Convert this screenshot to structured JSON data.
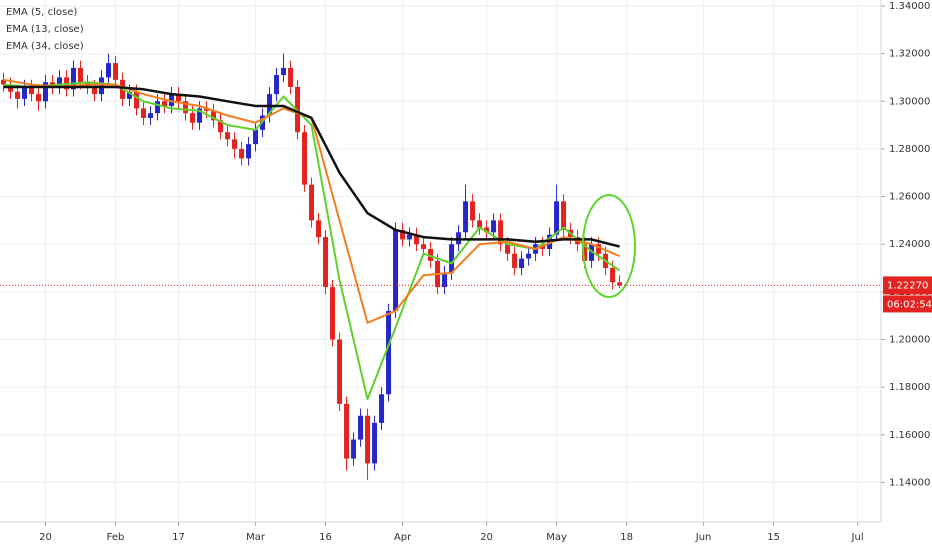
{
  "chart_data": {
    "type": "candlestick",
    "up_color": "#2727c9",
    "down_color": "#e3231f",
    "grid": true,
    "x": [
      0,
      1,
      2,
      3,
      4,
      5,
      6,
      7,
      8,
      9,
      10,
      11,
      12,
      13,
      14,
      15,
      16,
      17,
      18,
      19,
      20,
      21,
      22,
      23,
      24,
      25,
      26,
      27,
      28,
      29,
      30,
      31,
      32,
      33,
      34,
      35,
      36,
      37,
      38,
      39,
      40,
      41,
      42,
      43,
      44,
      45,
      46,
      47,
      48,
      49,
      50,
      51,
      52,
      53,
      54,
      55,
      56,
      57,
      58,
      59,
      60,
      61,
      62,
      63,
      64,
      65,
      66,
      67,
      68,
      69,
      70,
      71,
      72,
      73,
      74,
      75,
      76,
      77,
      78,
      79,
      80,
      81,
      82,
      83,
      84,
      85,
      86,
      87,
      88
    ],
    "ohlc": [
      [
        1.309,
        1.312,
        1.304,
        1.307
      ],
      [
        1.307,
        1.31,
        1.301,
        1.304
      ],
      [
        1.304,
        1.307,
        1.297,
        1.301
      ],
      [
        1.301,
        1.309,
        1.298,
        1.306
      ],
      [
        1.306,
        1.309,
        1.3,
        1.303
      ],
      [
        1.303,
        1.306,
        1.296,
        1.3
      ],
      [
        1.3,
        1.311,
        1.297,
        1.308
      ],
      [
        1.308,
        1.311,
        1.303,
        1.306
      ],
      [
        1.306,
        1.313,
        1.303,
        1.31
      ],
      [
        1.31,
        1.313,
        1.302,
        1.305
      ],
      [
        1.305,
        1.317,
        1.302,
        1.314
      ],
      [
        1.314,
        1.317,
        1.305,
        1.308
      ],
      [
        1.308,
        1.311,
        1.303,
        1.306
      ],
      [
        1.306,
        1.309,
        1.3,
        1.303
      ],
      [
        1.303,
        1.313,
        1.3,
        1.31
      ],
      [
        1.31,
        1.32,
        1.307,
        1.316
      ],
      [
        1.316,
        1.319,
        1.306,
        1.309
      ],
      [
        1.309,
        1.312,
        1.298,
        1.301
      ],
      [
        1.301,
        1.307,
        1.298,
        1.304
      ],
      [
        1.304,
        1.307,
        1.294,
        1.297
      ],
      [
        1.297,
        1.3,
        1.29,
        1.293
      ],
      [
        1.293,
        1.298,
        1.29,
        1.295
      ],
      [
        1.295,
        1.303,
        1.292,
        1.3
      ],
      [
        1.3,
        1.303,
        1.295,
        1.298
      ],
      [
        1.298,
        1.306,
        1.295,
        1.303
      ],
      [
        1.303,
        1.306,
        1.297,
        1.3
      ],
      [
        1.3,
        1.303,
        1.292,
        1.295
      ],
      [
        1.295,
        1.298,
        1.288,
        1.291
      ],
      [
        1.291,
        1.3,
        1.288,
        1.297
      ],
      [
        1.297,
        1.3,
        1.293,
        1.296
      ],
      [
        1.296,
        1.299,
        1.289,
        1.292
      ],
      [
        1.292,
        1.295,
        1.284,
        1.287
      ],
      [
        1.287,
        1.29,
        1.281,
        1.284
      ],
      [
        1.284,
        1.287,
        1.276,
        1.28
      ],
      [
        1.28,
        1.283,
        1.273,
        1.276
      ],
      [
        1.276,
        1.285,
        1.273,
        1.282
      ],
      [
        1.282,
        1.291,
        1.279,
        1.288
      ],
      [
        1.288,
        1.297,
        1.285,
        1.294
      ],
      [
        1.294,
        1.306,
        1.291,
        1.303
      ],
      [
        1.303,
        1.314,
        1.3,
        1.311
      ],
      [
        1.311,
        1.32,
        1.308,
        1.314
      ],
      [
        1.314,
        1.317,
        1.303,
        1.306
      ],
      [
        1.306,
        1.309,
        1.284,
        1.287
      ],
      [
        1.287,
        1.29,
        1.262,
        1.265
      ],
      [
        1.265,
        1.268,
        1.247,
        1.25
      ],
      [
        1.25,
        1.253,
        1.24,
        1.243
      ],
      [
        1.243,
        1.246,
        1.219,
        1.222
      ],
      [
        1.222,
        1.225,
        1.197,
        1.2
      ],
      [
        1.2,
        1.203,
        1.17,
        1.173
      ],
      [
        1.173,
        1.176,
        1.145,
        1.15
      ],
      [
        1.15,
        1.161,
        1.147,
        1.158
      ],
      [
        1.158,
        1.171,
        1.155,
        1.168
      ],
      [
        1.168,
        1.171,
        1.141,
        1.148
      ],
      [
        1.148,
        1.168,
        1.145,
        1.165
      ],
      [
        1.165,
        1.18,
        1.162,
        1.177
      ],
      [
        1.177,
        1.215,
        1.174,
        1.212
      ],
      [
        1.212,
        1.249,
        1.209,
        1.246
      ],
      [
        1.246,
        1.249,
        1.239,
        1.242
      ],
      [
        1.242,
        1.247,
        1.239,
        1.244
      ],
      [
        1.244,
        1.247,
        1.237,
        1.24
      ],
      [
        1.24,
        1.243,
        1.235,
        1.238
      ],
      [
        1.238,
        1.241,
        1.23,
        1.233
      ],
      [
        1.233,
        1.236,
        1.219,
        1.222
      ],
      [
        1.222,
        1.231,
        1.219,
        1.228
      ],
      [
        1.228,
        1.243,
        1.225,
        1.24
      ],
      [
        1.24,
        1.248,
        1.237,
        1.245
      ],
      [
        1.245,
        1.265,
        1.242,
        1.258
      ],
      [
        1.258,
        1.261,
        1.247,
        1.25
      ],
      [
        1.25,
        1.253,
        1.244,
        1.247
      ],
      [
        1.247,
        1.25,
        1.242,
        1.245
      ],
      [
        1.245,
        1.253,
        1.242,
        1.25
      ],
      [
        1.25,
        1.253,
        1.237,
        1.24
      ],
      [
        1.24,
        1.243,
        1.233,
        1.236
      ],
      [
        1.236,
        1.239,
        1.227,
        1.23
      ],
      [
        1.23,
        1.237,
        1.227,
        1.234
      ],
      [
        1.234,
        1.239,
        1.231,
        1.236
      ],
      [
        1.236,
        1.243,
        1.233,
        1.24
      ],
      [
        1.24,
        1.243,
        1.235,
        1.238
      ],
      [
        1.238,
        1.247,
        1.235,
        1.244
      ],
      [
        1.244,
        1.265,
        1.241,
        1.258
      ],
      [
        1.258,
        1.261,
        1.243,
        1.246
      ],
      [
        1.246,
        1.249,
        1.24,
        1.243
      ],
      [
        1.243,
        1.246,
        1.237,
        1.24
      ],
      [
        1.24,
        1.243,
        1.23,
        1.233
      ],
      [
        1.233,
        1.243,
        1.23,
        1.24
      ],
      [
        1.24,
        1.243,
        1.233,
        1.236
      ],
      [
        1.236,
        1.239,
        1.227,
        1.23
      ],
      [
        1.23,
        1.233,
        1.221,
        1.224
      ],
      [
        1.224,
        1.227,
        1.2215,
        1.2227
      ]
    ],
    "series": [
      {
        "name": "EMA (5, close)",
        "color": "#5fd12a",
        "x": [
          0,
          4,
          8,
          12,
          16,
          20,
          24,
          28,
          32,
          36,
          40,
          44,
          48,
          52,
          56,
          60,
          64,
          68,
          72,
          76,
          80,
          84,
          88
        ],
        "values": [
          1.307,
          1.306,
          1.307,
          1.308,
          1.307,
          1.3,
          1.297,
          1.296,
          1.29,
          1.288,
          1.302,
          1.29,
          1.225,
          1.175,
          1.205,
          1.236,
          1.232,
          1.247,
          1.24,
          1.238,
          1.247,
          1.237,
          1.229
        ]
      },
      {
        "name": "EMA (13, close)",
        "color": "#f57c1f",
        "x": [
          0,
          4,
          8,
          12,
          16,
          20,
          24,
          28,
          32,
          36,
          40,
          44,
          48,
          52,
          56,
          60,
          64,
          68,
          72,
          76,
          80,
          84,
          88
        ],
        "values": [
          1.309,
          1.307,
          1.306,
          1.307,
          1.307,
          1.303,
          1.3,
          1.298,
          1.294,
          1.291,
          1.297,
          1.293,
          1.25,
          1.207,
          1.212,
          1.227,
          1.228,
          1.24,
          1.241,
          1.238,
          1.243,
          1.24,
          1.235
        ]
      },
      {
        "name": "EMA (34, close)",
        "color": "#111111",
        "x": [
          0,
          4,
          8,
          12,
          16,
          20,
          24,
          28,
          32,
          36,
          40,
          44,
          48,
          52,
          56,
          60,
          64,
          68,
          72,
          76,
          80,
          84,
          88
        ],
        "values": [
          1.306,
          1.306,
          1.306,
          1.306,
          1.306,
          1.305,
          1.303,
          1.302,
          1.3,
          1.298,
          1.298,
          1.293,
          1.27,
          1.253,
          1.246,
          1.243,
          1.242,
          1.242,
          1.242,
          1.241,
          1.242,
          1.242,
          1.239
        ]
      }
    ],
    "xlim": [
      -0.5,
      125.2
    ],
    "xticks": [
      {
        "value": 6,
        "label": "20"
      },
      {
        "value": 16,
        "label": "Feb"
      },
      {
        "value": 25,
        "label": "17"
      },
      {
        "value": 36,
        "label": "Mar"
      },
      {
        "value": 46,
        "label": "16"
      },
      {
        "value": 57,
        "label": "Apr"
      },
      {
        "value": 69,
        "label": "20"
      },
      {
        "value": 79,
        "label": "May"
      },
      {
        "value": 89,
        "label": "18"
      },
      {
        "value": 100,
        "label": "Jun"
      },
      {
        "value": 110,
        "label": "15"
      },
      {
        "value": 122,
        "label": "Jul"
      }
    ],
    "ylim": [
      1.1234,
      1.3425
    ],
    "yticks": [
      {
        "value": 1.14,
        "label": "1.14000"
      },
      {
        "value": 1.16,
        "label": "1.16000"
      },
      {
        "value": 1.18,
        "label": "1.18000"
      },
      {
        "value": 1.2,
        "label": "1.20000"
      },
      {
        "value": 1.22,
        "label": "1.22000"
      },
      {
        "value": 1.24,
        "label": "1.24000"
      },
      {
        "value": 1.26,
        "label": "1.26000"
      },
      {
        "value": 1.28,
        "label": "1.28000"
      },
      {
        "value": 1.3,
        "label": "1.30000"
      },
      {
        "value": 1.32,
        "label": "1.32000"
      },
      {
        "value": 1.34,
        "label": "1.34000"
      }
    ],
    "last_price": {
      "value": 1.2227,
      "label": "1.22270"
    },
    "countdown": "06:02:54"
  }
}
